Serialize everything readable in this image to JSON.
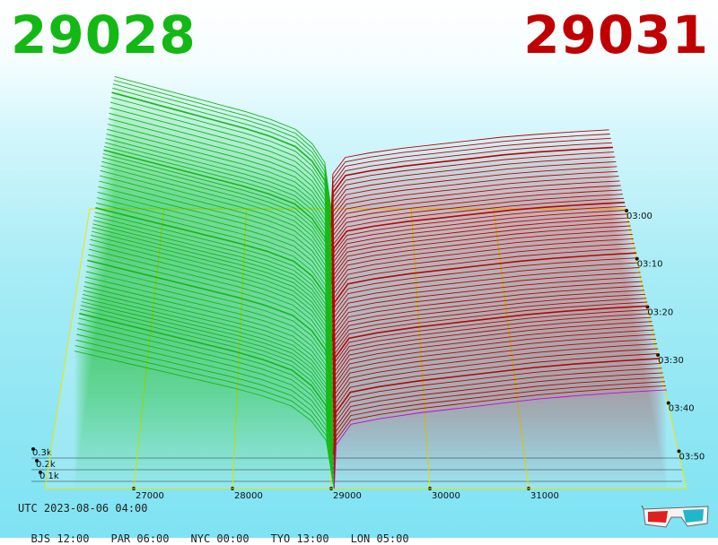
{
  "header": {
    "bid_price": "29028",
    "ask_price": "29031"
  },
  "footer": {
    "utc": "UTC 2023-08-06 04:00",
    "zones": [
      {
        "label": "BJS 12:00"
      },
      {
        "label": "PAR 06:00"
      },
      {
        "label": "NYC 00:00"
      },
      {
        "label": "TYO 13:00"
      },
      {
        "label": "LON 05:00"
      }
    ]
  },
  "icons": {
    "glasses": "3d-glasses-icon"
  },
  "colors": {
    "bid": "#14b814",
    "ask": "#c00000",
    "grid": "#e8e800",
    "highlight": "#d000d0"
  },
  "chart_data": {
    "type": "area",
    "price_axis": {
      "ticks": [
        {
          "value": 27000,
          "label": "27000"
        },
        {
          "value": 28000,
          "label": "28000"
        },
        {
          "value": 29000,
          "label": "29000"
        },
        {
          "value": 30000,
          "label": "30000"
        },
        {
          "value": 31000,
          "label": "31000"
        }
      ],
      "range": [
        26100,
        32600
      ]
    },
    "volume_axis": {
      "ticks": [
        {
          "value": 100,
          "label": "0.1k"
        },
        {
          "value": 200,
          "label": "0.2k"
        },
        {
          "value": 300,
          "label": "0.3k"
        }
      ]
    },
    "time_axis": {
      "ticks": [
        {
          "label": "03:00"
        },
        {
          "label": "03:10"
        },
        {
          "label": "03:20"
        },
        {
          "label": "03:30"
        },
        {
          "label": "03:40"
        },
        {
          "label": "03:50"
        }
      ],
      "range": [
        "03:00",
        "03:50"
      ],
      "slices": 60
    },
    "series": [
      {
        "name": "bids",
        "color": "#14b814",
        "price": [
          26400,
          26700,
          27000,
          27300,
          27600,
          28000,
          28300,
          28600,
          28800,
          28950,
          29028
        ],
        "cumulative_volume": [
          1200,
          1140,
          1080,
          1020,
          960,
          880,
          810,
          720,
          590,
          420,
          0
        ]
      },
      {
        "name": "asks",
        "color": "#c00000",
        "price": [
          29031,
          29050,
          29200,
          29500,
          29900,
          30300,
          30700,
          31100,
          31500,
          32000,
          32400
        ],
        "cumulative_volume": [
          0,
          380,
          560,
          610,
          660,
          700,
          740,
          780,
          810,
          840,
          860
        ]
      }
    ],
    "grid": true
  }
}
